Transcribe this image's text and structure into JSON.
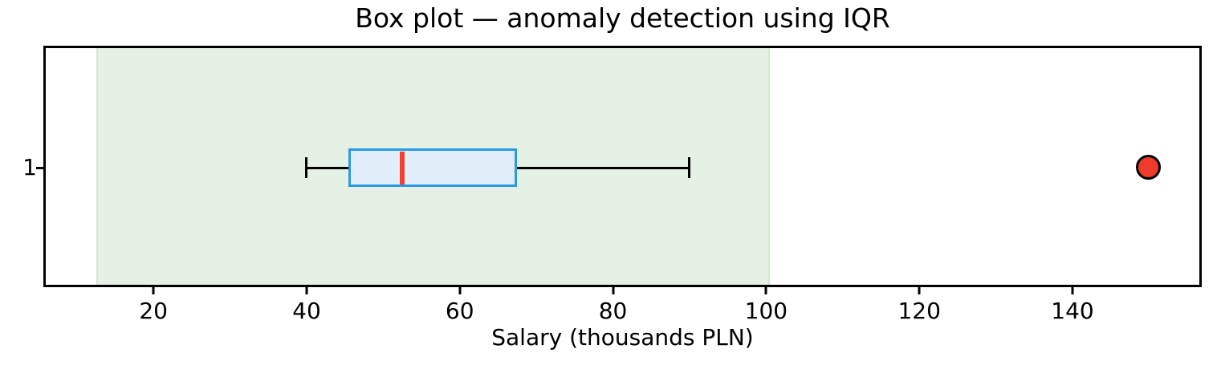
{
  "chart_data": {
    "type": "box",
    "orientation": "horizontal",
    "title": "Box plot — anomaly detection using IQR",
    "xlabel": "Salary (thousands PLN)",
    "y_category": "1",
    "x_ticks": [
      20,
      40,
      60,
      80,
      100,
      120,
      140
    ],
    "xlim": [
      5.625,
      156.875
    ],
    "grid": false,
    "box": {
      "whisker_low": 40,
      "q1": 45.5,
      "median": 52.5,
      "q3": 67.5,
      "whisker_high": 90,
      "outliers": [
        150
      ]
    },
    "iqr_region": {
      "low": 12.5,
      "high": 100.5
    },
    "colors": {
      "background": "#ffffff",
      "spine": "#000000",
      "whisker": "#000000",
      "box_edge": "#2b99e6",
      "box_fill": "#e2effb",
      "median": "#f2402f",
      "outlier_fill": "#f03a2b",
      "outlier_edge": "#000000",
      "region_fill": "#e6f1e5",
      "region_edge": "#d3e8d2",
      "text": "#000000"
    }
  }
}
